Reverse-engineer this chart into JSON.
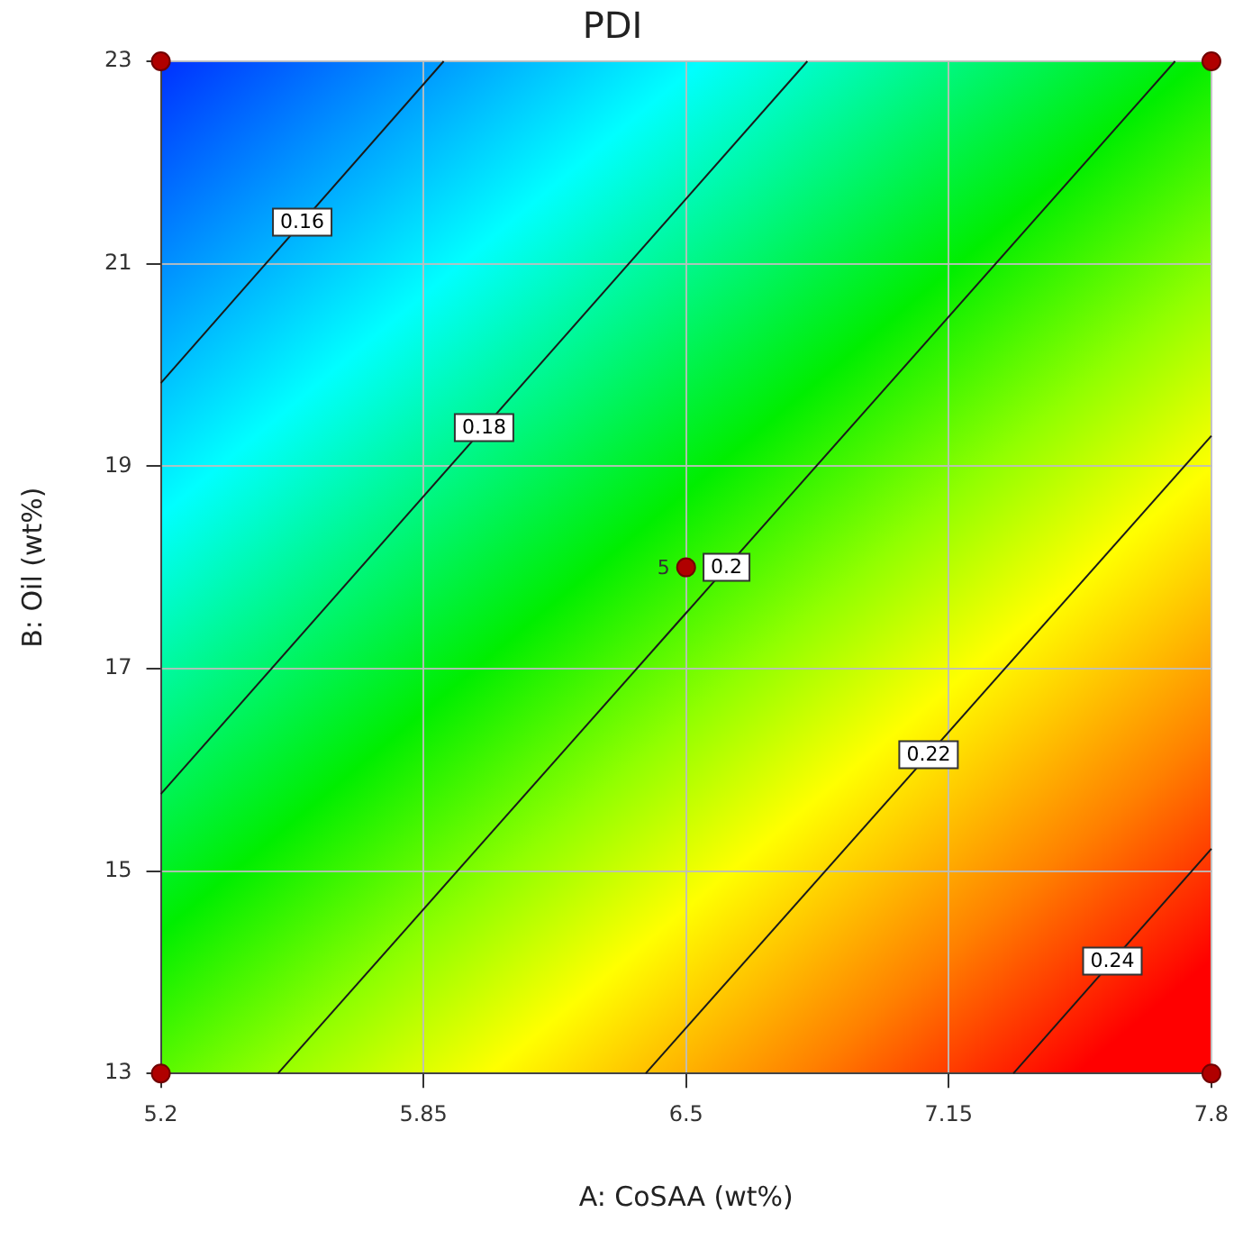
{
  "chart_data": {
    "type": "line",
    "title": "PDI",
    "xlabel": "A: CoSAA (wt%)",
    "ylabel": "B: Oil (wt%)",
    "xlim": [
      5.2,
      7.8
    ],
    "xticks": [
      5.2,
      5.85,
      6.5,
      7.15,
      7.8
    ],
    "ylim": [
      13,
      23
    ],
    "yticks": [
      13,
      15,
      17,
      19,
      21,
      23
    ],
    "annotations": [
      {
        "text": "5",
        "x": 6.5,
        "y": 18
      }
    ],
    "grid": true,
    "legend": false,
    "line_style": "solid",
    "series": [
      {
        "name": "0.16",
        "color": "#1a1a1a",
        "x": [
          5.2,
          5.9
        ],
        "values": [
          19.82,
          23
        ]
      },
      {
        "name": "0.18",
        "color": "#1a1a1a",
        "x": [
          5.2,
          6.8
        ],
        "values": [
          15.76,
          23
        ]
      },
      {
        "name": "0.2",
        "color": "#1a1a1a",
        "x": [
          5.49,
          7.71
        ],
        "values": [
          13,
          23
        ]
      },
      {
        "name": "0.22",
        "color": "#1a1a1a",
        "x": [
          6.4,
          7.8
        ],
        "values": [
          13,
          19.3
        ]
      },
      {
        "name": "0.24",
        "color": "#1a1a1a",
        "x": [
          7.31,
          7.8
        ],
        "values": [
          13,
          15.22
        ]
      },
      {
        "type": "scatter",
        "marker": "circle",
        "color": "#b00000",
        "x": [
          5.2,
          5.2,
          7.8,
          7.8,
          6.5
        ],
        "values": [
          13,
          23,
          13,
          23,
          18
        ]
      }
    ]
  }
}
